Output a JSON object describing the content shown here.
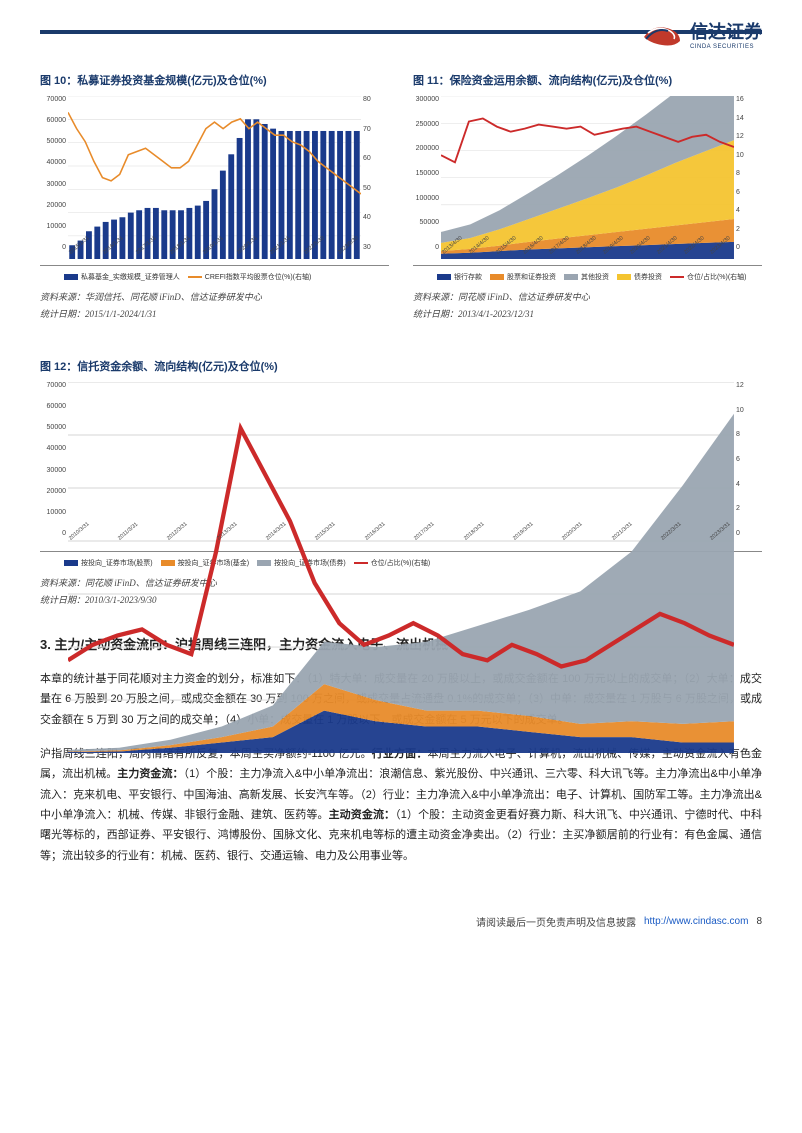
{
  "brand": {
    "name": "信达证券",
    "sub": "CINDA SECURITIES"
  },
  "chart10": {
    "title": "图 10：私募证券投资基金规模(亿元)及仓位(%)",
    "type": "bar+line",
    "y_left": [
      "70000",
      "60000",
      "50000",
      "40000",
      "30000",
      "20000",
      "10000",
      "0"
    ],
    "y_right": [
      "80",
      "70",
      "60",
      "50",
      "40",
      "30"
    ],
    "x": [
      "2015/1/31",
      "2015/5/30",
      "2015/9/30",
      "2016/1/31",
      "2016/5/30",
      "2016/9/30",
      "2017/1/31",
      "2017/5/30",
      "2017/9/30",
      "2018/1/31",
      "2018/5/30",
      "2018/9/30",
      "2019/1/31",
      "2019/5/30",
      "2019/9/30",
      "2020/1/31",
      "2020/5/30",
      "2020/9/30",
      "2021/1/31",
      "2021/5/30",
      "2021/9/30",
      "2022/5/30",
      "2022/9/30",
      "2023/5/30",
      "2023/9/30",
      "2024/1/31"
    ],
    "bar_color": "#1a3a8b",
    "bars": [
      6,
      8,
      12,
      14,
      16,
      17,
      18,
      20,
      21,
      22,
      22,
      21,
      21,
      21,
      22,
      23,
      25,
      30,
      38,
      45,
      52,
      60,
      60,
      58,
      56,
      55,
      55,
      55,
      55,
      55,
      55,
      55,
      55,
      55,
      55
    ],
    "bar_max": 70,
    "line_color": "#e88b2a",
    "line": [
      75,
      70,
      66,
      60,
      55,
      54,
      56,
      62,
      63,
      64,
      62,
      60,
      58,
      58,
      60,
      65,
      70,
      72,
      70,
      72,
      73,
      70,
      72,
      70,
      68,
      68,
      66,
      65,
      63,
      60,
      58,
      56,
      54,
      52,
      50
    ],
    "line_min": 30,
    "line_max": 80,
    "legend": [
      {
        "color": "#1a3a8b",
        "type": "bar",
        "label": "私募基金_实缴规模_证券管理人"
      },
      {
        "color": "#e88b2a",
        "type": "line",
        "label": "CREFI指数平均股票仓位(%)(右轴)"
      }
    ],
    "source": "资料来源：华润信托、同花顺 iFinD、信达证券研发中心",
    "stat_date": "统计日期：2015/1/1-2024/1/31"
  },
  "chart11": {
    "title": "图 11：保险资金运用余额、流向结构(亿元)及仓位(%)",
    "type": "stacked-area+line",
    "y_left": [
      "300000",
      "250000",
      "200000",
      "150000",
      "100000",
      "50000",
      "0"
    ],
    "y_right": [
      "16",
      "14",
      "12",
      "10",
      "8",
      "6",
      "4",
      "2",
      "0"
    ],
    "x": [
      "2013/4/30",
      "2014/4/30",
      "2015/4/30",
      "2016/4/30",
      "2017/4/30",
      "2018/4/30",
      "2019/4/30",
      "2020/4/30",
      "2021/4/30",
      "2022/4/30",
      "2023/4/30"
    ],
    "areas": [
      {
        "color": "#1a3a8b",
        "vals": [
          10,
          12,
          15,
          18,
          20,
          22,
          24,
          26,
          28,
          30,
          32
        ]
      },
      {
        "color": "#e88b2a",
        "vals": [
          5,
          7,
          10,
          14,
          18,
          22,
          26,
          30,
          34,
          38,
          42
        ]
      },
      {
        "color": "#f4c430",
        "vals": [
          15,
          20,
          30,
          42,
          55,
          68,
          82,
          98,
          115,
          130,
          145
        ]
      },
      {
        "color": "#9aa5b1",
        "vals": [
          20,
          25,
          35,
          48,
          62,
          78,
          95,
          112,
          130,
          148,
          165
        ]
      }
    ],
    "area_max": 300,
    "line_color": "#cc2a2a",
    "line": [
      10.2,
      9.5,
      13.5,
      13.8,
      13.0,
      12.5,
      12.8,
      13.2,
      13.0,
      12.8,
      13.0,
      12.2,
      12.5,
      12.8,
      13.0,
      12.5,
      12.0,
      11.5,
      12.0,
      12.2,
      11.5,
      11.0
    ],
    "line_min": 0,
    "line_max": 16,
    "legend": [
      {
        "color": "#1a3a8b",
        "type": "bar",
        "label": "银行存款"
      },
      {
        "color": "#e88b2a",
        "type": "bar",
        "label": "股票和证券投资"
      },
      {
        "color": "#9aa5b1",
        "type": "bar",
        "label": "其他投资"
      },
      {
        "color": "#f4c430",
        "type": "bar",
        "label": "债券投资"
      },
      {
        "color": "#cc2a2a",
        "type": "line",
        "label": "仓位/占比(%)(右轴)"
      }
    ],
    "source": "资料来源：同花顺 iFinD、信达证券研发中心",
    "stat_date": "统计日期：2013/4/1-2023/12/31"
  },
  "chart12": {
    "title": "图 12：信托资金余额、流向结构(亿元)及仓位(%)",
    "type": "stacked-area+line",
    "y_left": [
      "70000",
      "60000",
      "50000",
      "40000",
      "30000",
      "20000",
      "10000",
      "0"
    ],
    "y_right": [
      "12",
      "10",
      "8",
      "6",
      "4",
      "2",
      "0"
    ],
    "x": [
      "2010/3/31",
      "2011/3/31",
      "2012/3/31",
      "2013/3/31",
      "2014/3/31",
      "2015/3/31",
      "2016/3/31",
      "2017/3/31",
      "2018/3/31",
      "2019/3/31",
      "2020/3/31",
      "2021/3/31",
      "2022/3/31",
      "2023/3/31"
    ],
    "areas": [
      {
        "color": "#1a3a8b",
        "vals": [
          0.2,
          0.3,
          1,
          2,
          3,
          8,
          6,
          5,
          5,
          4,
          3,
          3,
          2,
          2
        ]
      },
      {
        "color": "#e88b2a",
        "vals": [
          0.1,
          0.2,
          0.5,
          1,
          2,
          5,
          4,
          3,
          3,
          3,
          2.5,
          3,
          3.5,
          4
        ]
      },
      {
        "color": "#9aa5b1",
        "vals": [
          0.3,
          0.5,
          1,
          2,
          4,
          8,
          10,
          13,
          16,
          20,
          25,
          32,
          45,
          58
        ]
      }
    ],
    "area_max": 70,
    "line_color": "#cc2a2a",
    "line": [
      3.0,
      3.5,
      3.8,
      4.0,
      3.5,
      3.2,
      6.5,
      10.5,
      9.0,
      7.5,
      5.5,
      4.2,
      3.5,
      3.8,
      4.2,
      3.8,
      3.2,
      3.0,
      3.5,
      3.2,
      2.8,
      3.0,
      3.5,
      4.0,
      4.5,
      4.2,
      3.8,
      3.5
    ],
    "line_min": 0,
    "line_max": 12,
    "legend": [
      {
        "color": "#1a3a8b",
        "type": "bar",
        "label": "按投向_证券市场(股票)"
      },
      {
        "color": "#e88b2a",
        "type": "bar",
        "label": "按投向_证券市场(基金)"
      },
      {
        "color": "#9aa5b1",
        "type": "bar",
        "label": "按投向_证券市场(债券)"
      },
      {
        "color": "#cc2a2a",
        "type": "line",
        "label": "仓位/占比(%)(右轴)"
      }
    ],
    "source": "资料来源：同花顺 iFinD、信达证券研发中心",
    "stat_date": "统计日期：2010/3/1-2023/9/30"
  },
  "section3": {
    "title": "3. 主力/主动资金流向：沪指周线三连阳，主力资金流入电子、流出机械",
    "p1": "本章的统计基于同花顺对主力资金的划分，标准如下：（1）特大单：成交量在 20 万股以上，或成交金额在 100 万元以上的成交单；（2）大单：成交量在 6 万股到 20 万股之间，或成交金额在 30 万到 100 万之间，或成交量占流通盘 0.1%的成交单；（3）中单：成交量在 1 万股与 6 万股之间，或成交金额在 5 万到 30 万之间的成交单；（4）小单：成交量在 1 万股以下，或成交金额在 5 万元以下的成交单。",
    "p2_a": "沪指周线三连阳，周内情绪有所反复，本周主买净额约-1100 亿元。",
    "p2_b": "行业方面：",
    "p2_c": "本周主力流入电子、计算机，流出机械、传媒，主动资金流入有色金属，流出机械。",
    "p2_d": "主力资金流：",
    "p2_e": "（1）个股：主力净流入&中小单净流出：浪潮信息、紫光股份、中兴通讯、三六零、科大讯飞等。主力净流出&中小单净流入：克来机电、平安银行、中国海油、高新发展、长安汽车等。（2）行业：主力净流入&中小单净流出：电子、计算机、国防军工等。主力净流出&中小单净流入：机械、传媒、非银行金融、建筑、医药等。",
    "p2_f": "主动资金流：",
    "p2_g": "（1）个股：主动资金更看好赛力斯、科大讯飞、中兴通讯、宁德时代、中科曙光等标的，西部证券、平安银行、鸿博股份、国脉文化、克来机电等标的遭主动资金净卖出。（2）行业：主买净额居前的行业有：有色金属、通信等；流出较多的行业有：机械、医药、银行、交通运输、电力及公用事业等。"
  },
  "footer": {
    "disclaimer": "请阅读最后一页免责声明及信息披露",
    "url": "http://www.cindasc.com",
    "page": "8"
  }
}
